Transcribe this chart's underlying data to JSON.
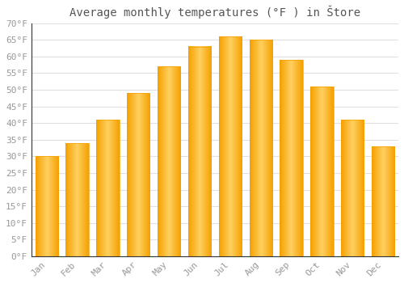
{
  "title": "Average monthly temperatures (°F ) in Štore",
  "months": [
    "Jan",
    "Feb",
    "Mar",
    "Apr",
    "May",
    "Jun",
    "Jul",
    "Aug",
    "Sep",
    "Oct",
    "Nov",
    "Dec"
  ],
  "values": [
    30,
    34,
    41,
    49,
    57,
    63,
    66,
    65,
    59,
    51,
    41,
    33
  ],
  "bar_color_center": "#FFD060",
  "bar_color_edge": "#F5A000",
  "ylim": [
    0,
    70
  ],
  "yticks": [
    0,
    5,
    10,
    15,
    20,
    25,
    30,
    35,
    40,
    45,
    50,
    55,
    60,
    65,
    70
  ],
  "ytick_labels": [
    "0°F",
    "5°F",
    "10°F",
    "15°F",
    "20°F",
    "25°F",
    "30°F",
    "35°F",
    "40°F",
    "45°F",
    "50°F",
    "55°F",
    "60°F",
    "65°F",
    "70°F"
  ],
  "background_color": "#ffffff",
  "grid_color": "#e0e0e0",
  "title_fontsize": 10,
  "tick_fontsize": 8,
  "font_family": "monospace",
  "tick_color": "#999999",
  "spine_color": "#333333"
}
